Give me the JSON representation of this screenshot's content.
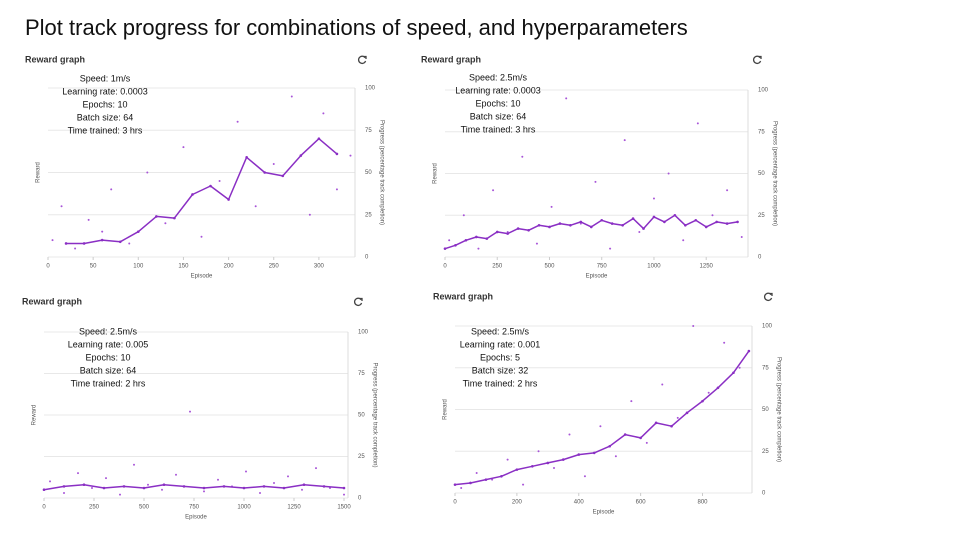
{
  "title": "Plot track progress for combinations of speed, and hyperparameters",
  "chart_data": [
    {
      "type": "line",
      "title": "Reward graph",
      "ylabel": "Reward",
      "y2label": "Progress (percentage track completion)",
      "xlabel": "Episode",
      "info": [
        "Speed: 1m/s",
        "Learning rate: 0.0003",
        "Epochs: 10",
        "Batch size: 64",
        "Time trained: 3 hrs"
      ],
      "xlim": [
        0,
        340
      ],
      "xticks": [
        0,
        50,
        100,
        150,
        200,
        250,
        300
      ],
      "ylim": [
        0,
        100
      ],
      "yticks": [
        0,
        25,
        50,
        75,
        100
      ],
      "grid": true,
      "series": [
        {
          "kind": "scatter",
          "color": "#a855d8",
          "x": [
            5,
            15,
            30,
            45,
            60,
            70,
            90,
            110,
            130,
            150,
            170,
            190,
            210,
            230,
            250,
            270,
            290,
            305,
            320,
            335
          ],
          "values": [
            10,
            30,
            5,
            22,
            15,
            40,
            8,
            50,
            20,
            65,
            12,
            45,
            80,
            30,
            55,
            95,
            25,
            85,
            40,
            60
          ]
        },
        {
          "kind": "line",
          "color": "#8a2fc4",
          "x": [
            20,
            40,
            60,
            80,
            100,
            120,
            140,
            160,
            180,
            200,
            220,
            240,
            260,
            280,
            300,
            320
          ],
          "values": [
            8,
            8,
            10,
            9,
            15,
            24,
            23,
            37,
            42,
            34,
            59,
            50,
            48,
            60,
            70,
            61
          ]
        }
      ]
    },
    {
      "type": "line",
      "title": "Reward graph",
      "ylabel": "Reward",
      "y2label": "Progress (percentage track completion)",
      "xlabel": "Episode",
      "info": [
        "Speed: 2.5m/s",
        "Learning rate: 0.0003",
        "Epochs: 10",
        "Batch size: 64",
        "Time trained: 3 hrs"
      ],
      "xlim": [
        0,
        1450
      ],
      "xticks": [
        0,
        250,
        500,
        750,
        1000,
        1250
      ],
      "ylim": [
        0,
        100
      ],
      "yticks": [
        0,
        25,
        50,
        75,
        100
      ],
      "grid": true,
      "series": [
        {
          "kind": "scatter",
          "color": "#a855d8",
          "x": [
            20,
            90,
            160,
            230,
            300,
            370,
            440,
            510,
            580,
            650,
            720,
            790,
            860,
            930,
            1000,
            1070,
            1140,
            1210,
            1280,
            1350,
            1420
          ],
          "values": [
            10,
            25,
            5,
            40,
            15,
            60,
            8,
            30,
            95,
            20,
            45,
            5,
            70,
            15,
            35,
            50,
            10,
            80,
            25,
            40,
            12
          ]
        },
        {
          "kind": "line",
          "color": "#8a2fc4",
          "x": [
            0,
            50,
            100,
            150,
            200,
            250,
            300,
            350,
            400,
            450,
            500,
            550,
            600,
            650,
            700,
            750,
            800,
            850,
            900,
            950,
            1000,
            1050,
            1100,
            1150,
            1200,
            1250,
            1300,
            1350,
            1400
          ],
          "values": [
            5,
            7,
            10,
            12,
            11,
            15,
            14,
            17,
            16,
            19,
            18,
            20,
            19,
            21,
            18,
            22,
            20,
            19,
            23,
            17,
            24,
            21,
            25,
            19,
            22,
            18,
            21,
            20,
            21
          ]
        }
      ]
    },
    {
      "type": "line",
      "title": "Reward graph",
      "ylabel": "Reward",
      "y2label": "Progress (percentage track completion)",
      "xlabel": "Episode",
      "info": [
        "Speed: 2.5m/s",
        "Learning rate: 0.005",
        "Epochs: 10",
        "Batch size: 64",
        "Time trained: 2 hrs"
      ],
      "xlim": [
        0,
        1520
      ],
      "xticks": [
        0,
        250,
        500,
        750,
        1000,
        1250,
        1500
      ],
      "ylim": [
        0,
        100
      ],
      "yticks": [
        0,
        25,
        50,
        75,
        100
      ],
      "grid": true,
      "series": [
        {
          "kind": "scatter",
          "color": "#a855d8",
          "x": [
            30,
            100,
            170,
            240,
            310,
            380,
            450,
            520,
            590,
            660,
            730,
            800,
            870,
            940,
            1010,
            1080,
            1150,
            1220,
            1290,
            1360,
            1430,
            1500
          ],
          "values": [
            10,
            3,
            15,
            6,
            12,
            2,
            20,
            8,
            5,
            14,
            52,
            4,
            11,
            7,
            16,
            3,
            9,
            13,
            5,
            18,
            6,
            2
          ]
        },
        {
          "kind": "line",
          "color": "#8a2fc4",
          "x": [
            0,
            100,
            200,
            300,
            400,
            500,
            600,
            700,
            800,
            900,
            1000,
            1100,
            1200,
            1300,
            1400,
            1500
          ],
          "values": [
            5,
            7,
            8,
            6,
            7,
            6,
            8,
            7,
            6,
            7,
            6,
            7,
            6,
            8,
            7,
            6
          ]
        }
      ]
    },
    {
      "type": "line",
      "title": "Reward graph",
      "ylabel": "Reward",
      "y2label": "Progress (percentage track completion)",
      "xlabel": "Episode",
      "info": [
        "Speed: 2.5m/s",
        "Learning rate: 0.001",
        "Epochs: 5",
        "Batch size: 32",
        "Time trained: 2 hrs"
      ],
      "xlim": [
        0,
        960
      ],
      "xticks": [
        0,
        200,
        400,
        600,
        800
      ],
      "ylim": [
        0,
        100
      ],
      "yticks": [
        0,
        25,
        50,
        75,
        100
      ],
      "grid": true,
      "series": [
        {
          "kind": "scatter",
          "color": "#a855d8",
          "x": [
            20,
            70,
            120,
            170,
            220,
            270,
            320,
            370,
            420,
            470,
            520,
            570,
            620,
            670,
            720,
            770,
            820,
            870,
            920
          ],
          "values": [
            3,
            12,
            8,
            20,
            5,
            25,
            15,
            35,
            10,
            40,
            22,
            55,
            30,
            65,
            45,
            100,
            60,
            90,
            75
          ]
        },
        {
          "kind": "line",
          "color": "#8a2fc4",
          "x": [
            0,
            50,
            100,
            150,
            200,
            250,
            300,
            350,
            400,
            450,
            500,
            550,
            600,
            650,
            700,
            750,
            800,
            850,
            900,
            950
          ],
          "values": [
            5,
            6,
            8,
            10,
            14,
            16,
            18,
            20,
            23,
            24,
            28,
            35,
            33,
            42,
            40,
            48,
            55,
            63,
            72,
            85
          ]
        }
      ]
    }
  ]
}
